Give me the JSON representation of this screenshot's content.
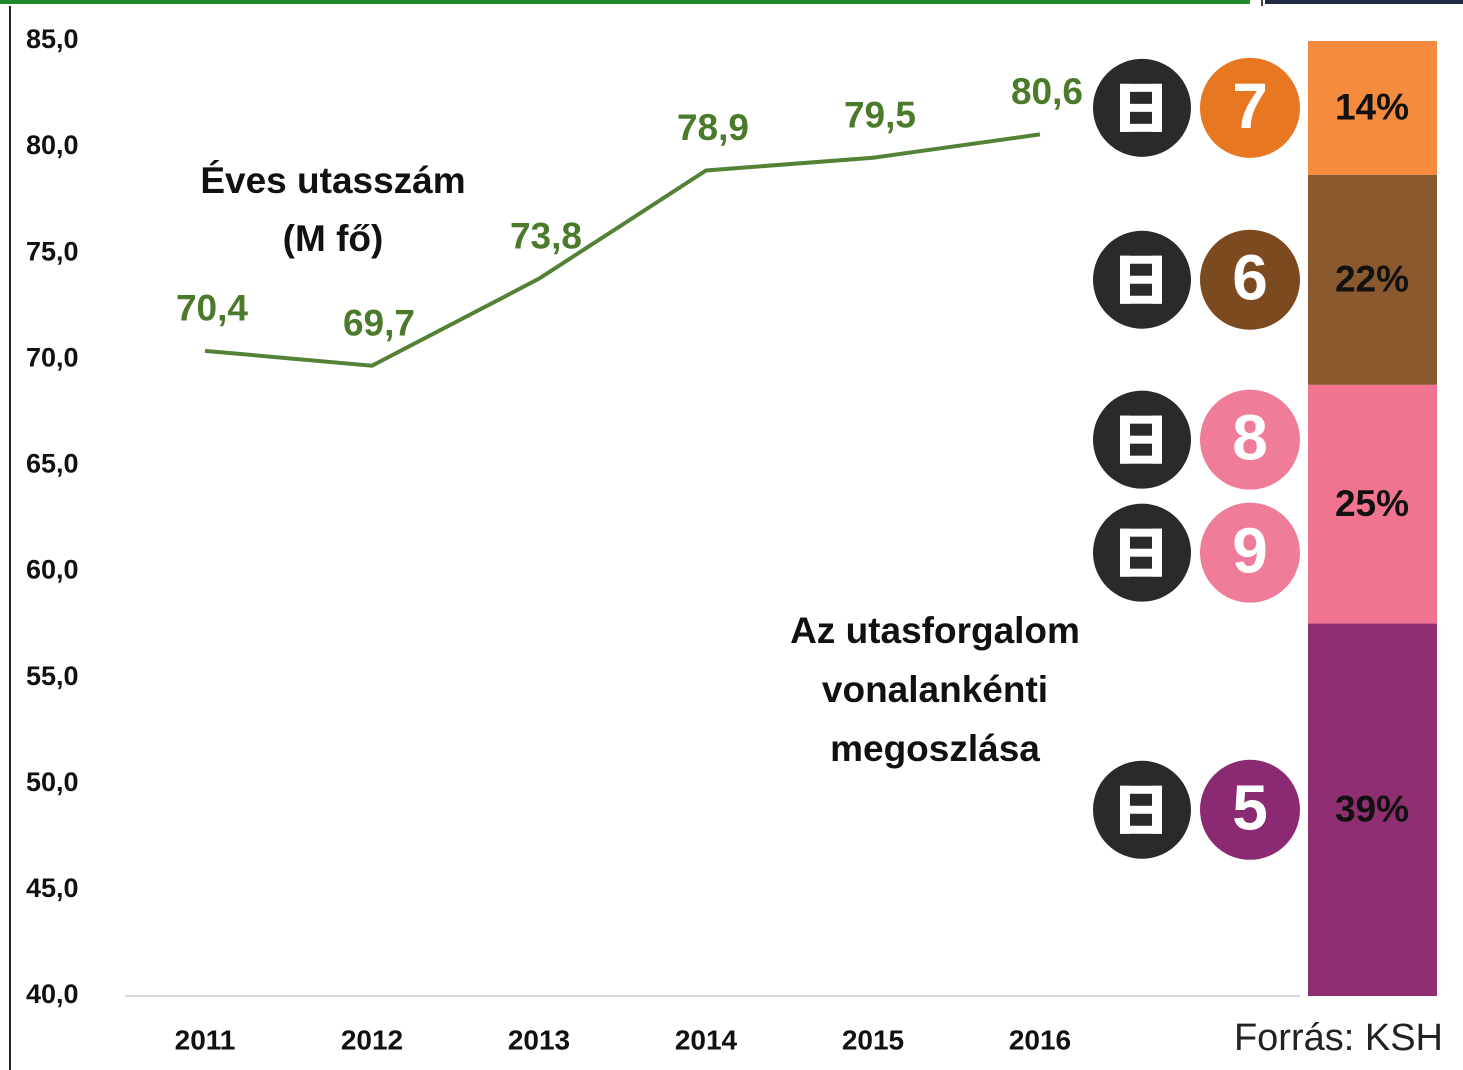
{
  "chart_data": [
    {
      "type": "line",
      "annotation": [
        "Éves utasszám",
        "(M fő)"
      ],
      "categories": [
        "2011",
        "2012",
        "2013",
        "2014",
        "2015",
        "2016"
      ],
      "values": [
        70.4,
        69.7,
        73.8,
        78.9,
        79.5,
        80.6
      ],
      "value_labels": [
        "70,4",
        "69,7",
        "73,8",
        "78,9",
        "79,5",
        "80,6"
      ],
      "color": "#538135",
      "ylim": [
        40,
        85
      ],
      "yticks": [
        {
          "value": 40,
          "label": "40,0"
        },
        {
          "value": 45,
          "label": "45,0"
        },
        {
          "value": 50,
          "label": "50,0"
        },
        {
          "value": 55,
          "label": "55,0"
        },
        {
          "value": 60,
          "label": "60,0"
        },
        {
          "value": 65,
          "label": "65,0"
        },
        {
          "value": 70,
          "label": "70,0"
        },
        {
          "value": 75,
          "label": "75,0"
        },
        {
          "value": 80,
          "label": "80,0"
        },
        {
          "value": 85,
          "label": "85,0"
        }
      ],
      "source": "Forrás: KSH"
    },
    {
      "type": "stacked-bar",
      "annotation": [
        "Az utasforgalom",
        "vonalankénti",
        "megoszlása"
      ],
      "ylim": [
        0,
        100
      ],
      "segments": [
        {
          "lines": [
            "5"
          ],
          "value": 39,
          "value_label": "39%",
          "color": "#8e2f72",
          "badge_color": "#8b2a72"
        },
        {
          "lines": [
            "8",
            "9"
          ],
          "value": 25,
          "value_label": "25%",
          "color": "#f07490",
          "badge_color": "#ef7d99"
        },
        {
          "lines": [
            "6"
          ],
          "value": 22,
          "value_label": "22%",
          "color": "#8a5a2e",
          "badge_color": "#7b4a1e"
        },
        {
          "lines": [
            "7"
          ],
          "value": 14,
          "value_label": "14%",
          "color": "#f58b3c",
          "badge_color": "#e87722"
        }
      ]
    }
  ]
}
